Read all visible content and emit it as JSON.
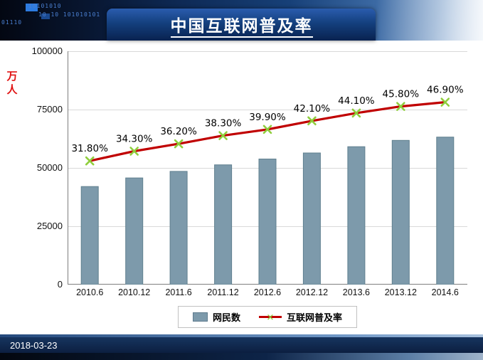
{
  "slide": {
    "title": "中国互联网普及率",
    "date": "2018-03-23",
    "binary_row1": "10101010",
    "binary_row2": "10 10 101010101",
    "binary_left": "01110"
  },
  "chart_data": {
    "type": "bar",
    "title": "中国互联网普及率",
    "ylabel": "万人",
    "ylabel_color": "#e01010",
    "categories": [
      "2010.6",
      "2010.12",
      "2011.6",
      "2011.12",
      "2012.6",
      "2012.12",
      "2013.6",
      "2013.12",
      "2014.6"
    ],
    "series": [
      {
        "name": "网民数",
        "type": "bar",
        "axis": "primary",
        "values": [
          42000,
          45700,
          48500,
          51300,
          53800,
          56400,
          59100,
          61800,
          63200
        ],
        "color": "#7d9aab",
        "border_color": "#60808f"
      },
      {
        "name": "互联网普及率",
        "type": "line",
        "axis": "secondary",
        "values": [
          31.8,
          34.3,
          36.2,
          38.3,
          39.9,
          42.1,
          44.1,
          45.8,
          46.9
        ],
        "labels": [
          "31.80%",
          "34.30%",
          "36.20%",
          "38.30%",
          "39.90%",
          "42.10%",
          "44.10%",
          "45.80%",
          "46.90%"
        ],
        "color": "#c00000",
        "marker": "x",
        "marker_color": "#8fce3c"
      }
    ],
    "primary_axis": {
      "min": 0,
      "max": 100000,
      "tick_labels_top_down": [
        "100000",
        "75000",
        "50000",
        "25000",
        "0"
      ]
    },
    "secondary_axis": {
      "min": 0,
      "max": 60
    },
    "grid": true,
    "gridline_color": "#d9d9d9",
    "axis_line_color": "#7f7f7f",
    "legend_position": "bottom"
  }
}
